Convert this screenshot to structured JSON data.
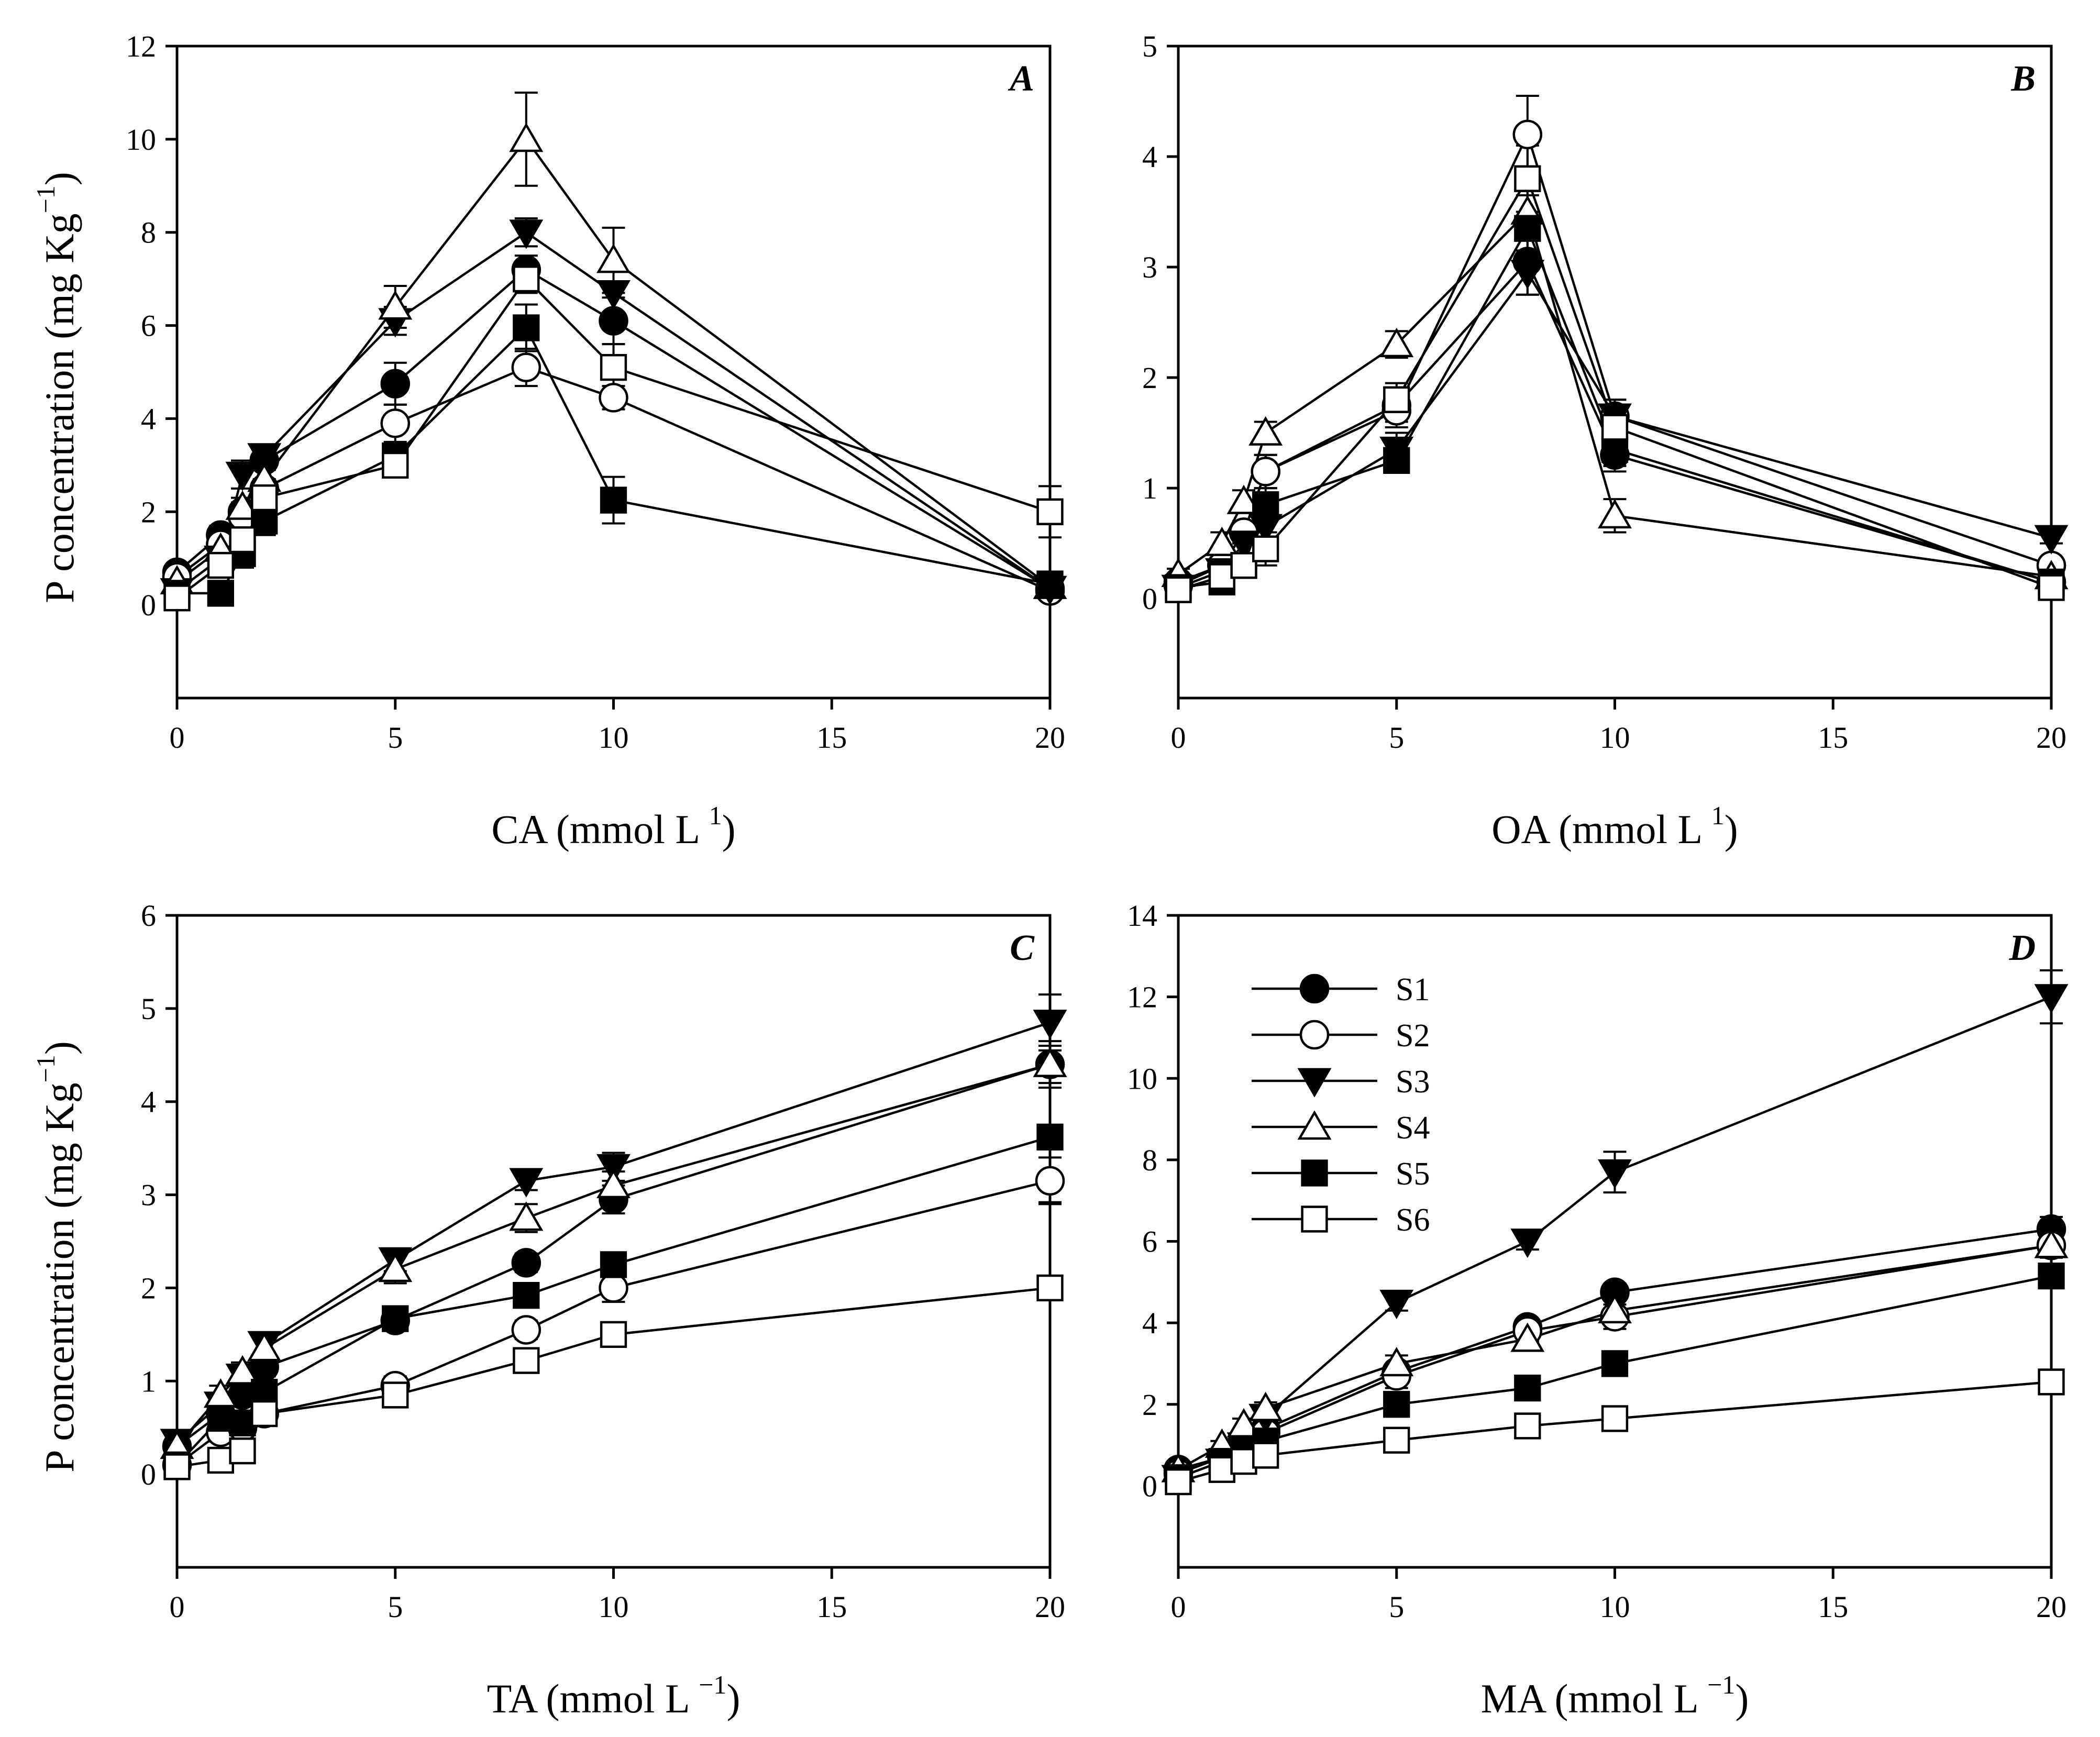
{
  "chart_data": [
    {
      "type": "line",
      "panel_label": "A",
      "xlabel": "CA (mmol L",
      "xlabel_sup": "1",
      "xlabel_tail": ")",
      "ylabel": "P concentration (mg Kg",
      "ylabel_sup": "−1",
      "ylabel_tail": ")",
      "xlim": [
        0,
        20
      ],
      "xticks": [
        0,
        5,
        10,
        15,
        20
      ],
      "ylim": [
        -2,
        12
      ],
      "yticks": [
        0,
        2,
        4,
        6,
        8,
        10,
        12
      ],
      "x": [
        0,
        1,
        1.5,
        2,
        5,
        8,
        10,
        20
      ],
      "series": [
        {
          "name": "S1",
          "values": [
            0.7,
            1.5,
            2.0,
            3.1,
            4.75,
            7.2,
            6.1,
            0.35
          ],
          "errors": [
            0.1,
            0.2,
            0.2,
            0.2,
            0.45,
            0.3,
            0.5,
            0.1
          ]
        },
        {
          "name": "S2",
          "values": [
            0.6,
            1.3,
            1.9,
            2.5,
            3.9,
            5.1,
            4.45,
            0.3
          ],
          "errors": [
            0.1,
            0.2,
            0.2,
            0.2,
            0.4,
            0.4,
            0.25,
            0.1
          ]
        },
        {
          "name": "S3",
          "values": [
            0.3,
            1.0,
            2.8,
            3.2,
            6.1,
            8.0,
            6.7,
            0.35
          ],
          "errors": [
            0.1,
            0.15,
            0.3,
            0.2,
            0.3,
            0.3,
            0.5,
            0.1
          ]
        },
        {
          "name": "S4",
          "values": [
            0.5,
            1.2,
            2.1,
            2.7,
            6.4,
            10.0,
            7.4,
            0.4
          ],
          "errors": [
            0.1,
            0.2,
            0.2,
            0.2,
            0.45,
            1.0,
            0.7,
            0.1
          ]
        },
        {
          "name": "S5",
          "values": [
            0.25,
            0.25,
            1.1,
            1.8,
            3.2,
            5.95,
            2.25,
            0.45
          ],
          "errors": [
            0.1,
            0.15,
            0.3,
            0.3,
            0.2,
            0.5,
            0.5,
            0.1
          ]
        },
        {
          "name": "S6",
          "values": [
            0.15,
            0.85,
            1.4,
            2.3,
            3.0,
            7.0,
            5.1,
            2.0
          ],
          "errors": [
            0.1,
            0.2,
            0.2,
            0.2,
            0.2,
            0.3,
            0.5,
            0.55
          ]
        }
      ]
    },
    {
      "type": "line",
      "panel_label": "B",
      "xlabel": "OA (mmol L",
      "xlabel_sup": "1",
      "xlabel_tail": ")",
      "ylabel": "",
      "ylabel_sup": "",
      "ylabel_tail": "",
      "xlim": [
        0,
        20
      ],
      "xticks": [
        0,
        5,
        10,
        15,
        20
      ],
      "ylim": [
        -0.9,
        5
      ],
      "yticks": [
        0,
        1,
        2,
        3,
        4,
        5
      ],
      "x": [
        0,
        1,
        1.5,
        2,
        5,
        8,
        10,
        20
      ],
      "series": [
        {
          "name": "S1",
          "values": [
            0.15,
            0.3,
            0.6,
            1.15,
            1.75,
            3.05,
            1.3,
            0.15
          ],
          "errors": [
            0.05,
            0.1,
            0.1,
            0.15,
            0.15,
            0.3,
            0.15,
            0.05
          ]
        },
        {
          "name": "S2",
          "values": [
            0.12,
            0.3,
            0.6,
            1.15,
            1.7,
            4.2,
            1.65,
            0.3
          ],
          "errors": [
            0.05,
            0.1,
            0.1,
            0.15,
            0.15,
            0.35,
            0.15,
            0.05
          ]
        },
        {
          "name": "S3",
          "values": [
            0.1,
            0.25,
            0.5,
            0.65,
            1.35,
            2.95,
            1.65,
            0.55
          ],
          "errors": [
            0.05,
            0.1,
            0.1,
            0.15,
            0.15,
            0.2,
            0.15,
            0.05
          ]
        },
        {
          "name": "S4",
          "values": [
            0.22,
            0.5,
            0.88,
            1.5,
            2.3,
            3.5,
            0.75,
            0.2
          ],
          "errors": [
            0.05,
            0.1,
            0.1,
            0.1,
            0.12,
            0.2,
            0.15,
            0.05
          ]
        },
        {
          "name": "S5",
          "values": [
            0.1,
            0.15,
            0.3,
            0.85,
            1.25,
            3.35,
            1.35,
            0.15
          ],
          "errors": [
            0.05,
            0.1,
            0.1,
            0.15,
            0.1,
            0.3,
            0.15,
            0.05
          ]
        },
        {
          "name": "S6",
          "values": [
            0.08,
            0.2,
            0.3,
            0.45,
            1.8,
            3.8,
            1.55,
            0.1
          ],
          "errors": [
            0.05,
            0.1,
            0.1,
            0.15,
            0.15,
            0.3,
            0.15,
            0.05
          ]
        }
      ]
    },
    {
      "type": "line",
      "panel_label": "C",
      "xlabel": "TA (mmol L",
      "xlabel_sup": "−1",
      "xlabel_tail": ")",
      "ylabel": "P concentration (mg Kg",
      "ylabel_sup": "−1",
      "ylabel_tail": ")",
      "xlim": [
        0,
        20
      ],
      "xticks": [
        0,
        5,
        10,
        15,
        20
      ],
      "ylim": [
        -1,
        6
      ],
      "yticks": [
        0,
        1,
        2,
        3,
        4,
        5,
        6
      ],
      "x": [
        0,
        1,
        1.5,
        2,
        5,
        8,
        10,
        20
      ],
      "series": [
        {
          "name": "S1",
          "values": [
            0.3,
            0.65,
            0.85,
            1.15,
            1.65,
            2.27,
            2.95,
            4.4
          ],
          "errors": [
            0.05,
            0.1,
            0.1,
            0.1,
            0.1,
            0.1,
            0.15,
            0.2
          ]
        },
        {
          "name": "S2",
          "values": [
            0.1,
            0.45,
            0.5,
            0.65,
            0.95,
            1.55,
            2.0,
            3.15
          ],
          "errors": [
            0.05,
            0.1,
            0.1,
            0.1,
            0.1,
            0.1,
            0.15,
            0.25
          ]
        },
        {
          "name": "S3",
          "values": [
            0.35,
            0.75,
            1.05,
            1.4,
            2.3,
            3.15,
            3.3,
            4.85
          ],
          "errors": [
            0.05,
            0.1,
            0.1,
            0.1,
            0.12,
            0.1,
            0.15,
            0.3
          ]
        },
        {
          "name": "S4",
          "values": [
            0.3,
            0.85,
            1.1,
            1.35,
            2.2,
            2.75,
            3.1,
            4.4
          ],
          "errors": [
            0.05,
            0.1,
            0.1,
            0.1,
            0.15,
            0.15,
            0.15,
            0.25
          ]
        },
        {
          "name": "S5",
          "values": [
            0.1,
            0.6,
            0.55,
            0.88,
            1.67,
            1.92,
            2.25,
            3.62
          ],
          "errors": [
            0.05,
            0.15,
            0.1,
            0.1,
            0.1,
            0.1,
            0.1,
            0.7
          ]
        },
        {
          "name": "S6",
          "values": [
            0.08,
            0.15,
            0.25,
            0.65,
            0.85,
            1.22,
            1.5,
            2.0
          ],
          "errors": [
            0.05,
            0.05,
            0.1,
            0.1,
            0.1,
            0.1,
            0.1,
            0.05
          ]
        }
      ]
    },
    {
      "type": "line",
      "panel_label": "D",
      "xlabel": "MA (mmol L",
      "xlabel_sup": "−1",
      "xlabel_tail": ")",
      "ylabel": "",
      "ylabel_sup": "",
      "ylabel_tail": "",
      "xlim": [
        0,
        20
      ],
      "xticks": [
        0,
        5,
        10,
        15,
        20
      ],
      "ylim": [
        -2,
        14
      ],
      "yticks": [
        0,
        2,
        4,
        6,
        8,
        10,
        12,
        14
      ],
      "x": [
        0,
        1,
        1.5,
        2,
        5,
        8,
        10,
        20
      ],
      "legend": {
        "position": "upper-left",
        "entries": [
          "S1",
          "S2",
          "S3",
          "S4",
          "S5",
          "S6"
        ]
      },
      "series": [
        {
          "name": "S1",
          "values": [
            0.4,
            0.7,
            1.1,
            1.4,
            2.8,
            3.9,
            4.75,
            6.3
          ],
          "errors": [
            0.1,
            0.1,
            0.15,
            0.15,
            0.2,
            0.2,
            0.2,
            0.3
          ]
        },
        {
          "name": "S2",
          "values": [
            0.3,
            0.7,
            1.0,
            1.3,
            2.7,
            3.8,
            4.15,
            5.9
          ],
          "errors": [
            0.1,
            0.1,
            0.15,
            0.15,
            0.3,
            0.25,
            0.3,
            0.3
          ]
        },
        {
          "name": "S3",
          "values": [
            0.2,
            0.6,
            1.0,
            1.7,
            4.5,
            6.0,
            7.7,
            12.0
          ],
          "errors": [
            0.1,
            0.1,
            0.15,
            0.2,
            0.2,
            0.2,
            0.5,
            0.65
          ]
        },
        {
          "name": "S4",
          "values": [
            0.4,
            1.0,
            1.5,
            1.9,
            3.0,
            3.6,
            4.3,
            5.9
          ],
          "errors": [
            0.1,
            0.1,
            0.15,
            0.15,
            0.2,
            0.25,
            0.25,
            0.3
          ]
        },
        {
          "name": "S5",
          "values": [
            0.2,
            0.6,
            0.8,
            1.1,
            2.0,
            2.4,
            3.0,
            5.15
          ],
          "errors": [
            0.1,
            0.1,
            0.1,
            0.15,
            0.15,
            0.15,
            0.15,
            0.2
          ]
        },
        {
          "name": "S6",
          "values": [
            0.1,
            0.4,
            0.6,
            0.75,
            1.12,
            1.47,
            1.65,
            2.55
          ],
          "errors": [
            0.05,
            0.1,
            0.1,
            0.1,
            0.1,
            0.1,
            0.1,
            0.15
          ]
        }
      ]
    }
  ]
}
